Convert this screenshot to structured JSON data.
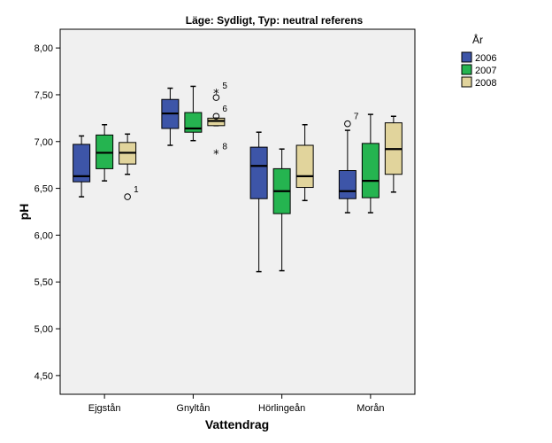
{
  "chart_data": {
    "type": "boxplot",
    "title": "Läge: Sydligt, Typ: neutral referens",
    "xlabel": "Vattendrag",
    "ylabel": "pH",
    "ylim": [
      4.3,
      8.2
    ],
    "yticks": [
      "4,50",
      "5,00",
      "5,50",
      "6,00",
      "6,50",
      "7,00",
      "7,50",
      "8,00"
    ],
    "ytick_values": [
      4.5,
      5.0,
      5.5,
      6.0,
      6.5,
      7.0,
      7.5,
      8.0
    ],
    "categories": [
      "Ejgstån",
      "Gnyltån",
      "Hörlingeån",
      "Morån"
    ],
    "legend": {
      "title": "År",
      "placement": "right",
      "series": [
        {
          "name": "2006",
          "color": "#3D55A8"
        },
        {
          "name": "2007",
          "color": "#25B450"
        },
        {
          "name": "2008",
          "color": "#E1D49C"
        }
      ]
    },
    "boxes": [
      {
        "category": "Ejgstån",
        "series": "2006",
        "whisker_low": 6.41,
        "q1": 6.57,
        "median": 6.63,
        "q3": 6.97,
        "whisker_high": 7.06,
        "outliers": []
      },
      {
        "category": "Ejgstån",
        "series": "2007",
        "whisker_low": 6.58,
        "q1": 6.71,
        "median": 6.88,
        "q3": 7.07,
        "whisker_high": 7.18,
        "outliers": []
      },
      {
        "category": "Ejgstån",
        "series": "2008",
        "whisker_low": 6.65,
        "q1": 6.76,
        "median": 6.88,
        "q3": 6.99,
        "whisker_high": 7.08,
        "outliers": [
          {
            "value": 6.41,
            "symbol": "circle",
            "label": "1"
          }
        ]
      },
      {
        "category": "Gnyltån",
        "series": "2006",
        "whisker_low": 6.96,
        "q1": 7.14,
        "median": 7.3,
        "q3": 7.45,
        "whisker_high": 7.57,
        "outliers": []
      },
      {
        "category": "Gnyltån",
        "series": "2007",
        "whisker_low": 7.01,
        "q1": 7.1,
        "median": 7.14,
        "q3": 7.31,
        "whisker_high": 7.59,
        "outliers": []
      },
      {
        "category": "Gnyltån",
        "series": "2008",
        "whisker_low": 7.17,
        "q1": 7.17,
        "median": 7.22,
        "q3": 7.25,
        "whisker_high": 7.25,
        "outliers": [
          {
            "value": 7.52,
            "symbol": "star",
            "label": "5"
          },
          {
            "value": 7.47,
            "symbol": "circle",
            "label": ""
          },
          {
            "value": 7.27,
            "symbol": "circle",
            "label": "6"
          },
          {
            "value": 6.87,
            "symbol": "star",
            "label": "8"
          }
        ]
      },
      {
        "category": "Hörlingeån",
        "series": "2006",
        "whisker_low": 5.61,
        "q1": 6.39,
        "median": 6.74,
        "q3": 6.94,
        "whisker_high": 7.1,
        "outliers": []
      },
      {
        "category": "Hörlingeån",
        "series": "2007",
        "whisker_low": 5.62,
        "q1": 6.23,
        "median": 6.47,
        "q3": 6.71,
        "whisker_high": 6.92,
        "outliers": []
      },
      {
        "category": "Hörlingeån",
        "series": "2008",
        "whisker_low": 6.37,
        "q1": 6.51,
        "median": 6.63,
        "q3": 6.96,
        "whisker_high": 7.18,
        "outliers": []
      },
      {
        "category": "Morån",
        "series": "2006",
        "whisker_low": 6.24,
        "q1": 6.39,
        "median": 6.47,
        "q3": 6.69,
        "whisker_high": 7.12,
        "outliers": [
          {
            "value": 7.19,
            "symbol": "circle",
            "label": "7"
          }
        ]
      },
      {
        "category": "Morån",
        "series": "2007",
        "whisker_low": 6.24,
        "q1": 6.4,
        "median": 6.58,
        "q3": 6.98,
        "whisker_high": 7.29,
        "outliers": []
      },
      {
        "category": "Morån",
        "series": "2008",
        "whisker_low": 6.46,
        "q1": 6.65,
        "median": 6.92,
        "q3": 7.2,
        "whisker_high": 7.27,
        "outliers": []
      }
    ],
    "plot_background": "#F0F0F0",
    "grid": false
  }
}
